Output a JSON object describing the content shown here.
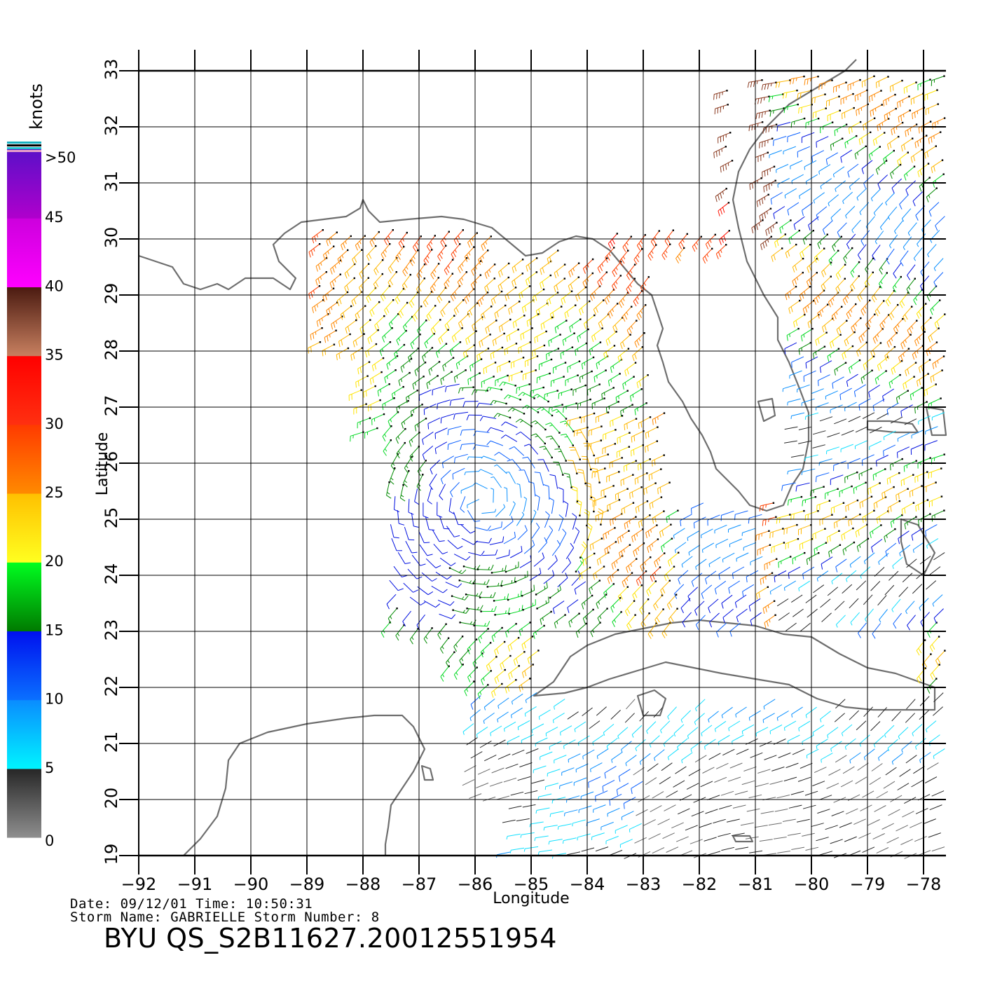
{
  "map": {
    "x_axis_label": "Longitude",
    "y_axis_label": "Latitude",
    "lon_range": [
      -92,
      -77.6
    ],
    "lat_range": [
      19,
      33
    ],
    "lon_ticks": [
      -92,
      -91,
      -90,
      -89,
      -88,
      -87,
      -86,
      -85,
      -84,
      -83,
      -82,
      -81,
      -80,
      -79,
      -78
    ],
    "lat_ticks": [
      19,
      20,
      21,
      22,
      23,
      24,
      25,
      26,
      27,
      28,
      29,
      30,
      31,
      32,
      33
    ],
    "grid": true,
    "coastline_color": "#6e6e6e"
  },
  "legend": {
    "title": "knots",
    "bands": [
      {
        "from": 0,
        "to": 5,
        "colors": [
          "#8f8f8f",
          "#262626"
        ]
      },
      {
        "from": 5,
        "to": 10,
        "colors": [
          "#00f4ff",
          "#0a8cff"
        ]
      },
      {
        "from": 10,
        "to": 15,
        "colors": [
          "#0a70ff",
          "#0010ee"
        ]
      },
      {
        "from": 15,
        "to": 20,
        "colors": [
          "#007a00",
          "#00ff20"
        ]
      },
      {
        "from": 20,
        "to": 25,
        "colors": [
          "#ffff20",
          "#ffc000"
        ]
      },
      {
        "from": 25,
        "to": 30,
        "colors": [
          "#ff8a00",
          "#ff3a00"
        ]
      },
      {
        "from": 30,
        "to": 35,
        "colors": [
          "#ff3010",
          "#ff0000"
        ]
      },
      {
        "from": 35,
        "to": 40,
        "colors": [
          "#c88060",
          "#4a1a10"
        ]
      },
      {
        "from": 40,
        "to": 45,
        "colors": [
          "#ff00ff",
          "#cc00dd"
        ]
      },
      {
        "from": 45,
        "to": 50,
        "colors": [
          "#b000cc",
          "#5a10c8"
        ]
      }
    ],
    "tick_labels": [
      "0",
      "5",
      "10",
      "15",
      "20",
      "25",
      "30",
      "35",
      "40",
      "45",
      ">50"
    ]
  },
  "footer": {
    "date_line": "Date: 09/12/01   Time: 10:50:31",
    "storm_line": "Storm Name: GABRIELLE   Storm Number: 8",
    "product": "BYU QS_S2B11627.20012551954"
  }
}
